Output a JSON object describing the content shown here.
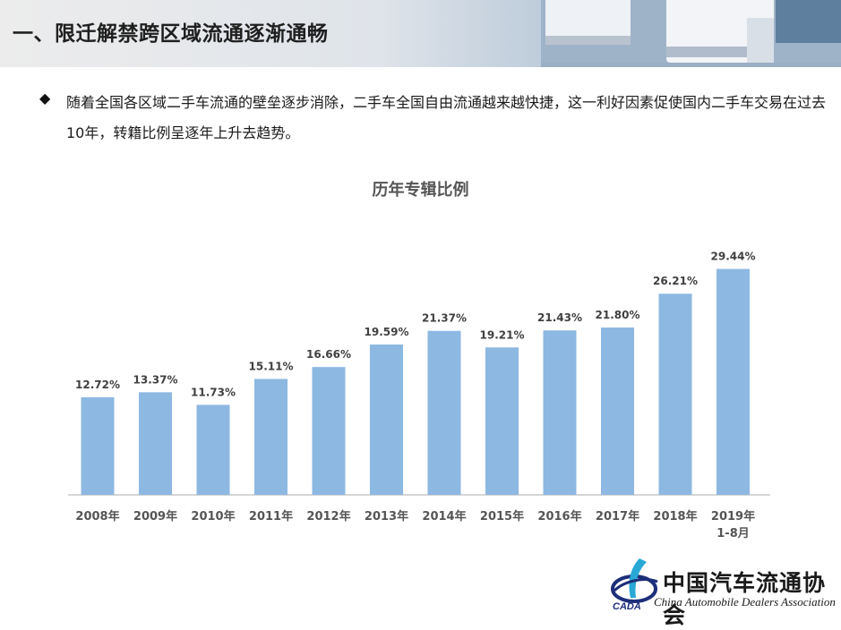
{
  "header": {
    "title": "一、限迁解禁跨区域流通逐渐通畅"
  },
  "bullet": {
    "icon": "diamond-bullet-icon",
    "text": "随着全国各区域二手车流通的壁垒逐步消除，二手车全国自由流通越来越快捷，这一利好因素促使国内二手车交易在过去10年，转籍比例呈逐年上升去趋势。"
  },
  "chart_data": {
    "type": "bar",
    "title": "历年专辑比例",
    "categories": [
      "2008年",
      "2009年",
      "2010年",
      "2011年",
      "2012年",
      "2013年",
      "2014年",
      "2015年",
      "2016年",
      "2017年",
      "2018年",
      "2019年\n1-8月"
    ],
    "values": [
      12.72,
      13.37,
      11.73,
      15.11,
      16.66,
      19.59,
      21.37,
      19.21,
      21.43,
      21.8,
      26.21,
      29.44
    ],
    "value_labels": [
      "12.72%",
      "13.37%",
      "11.73%",
      "15.11%",
      "16.66%",
      "19.59%",
      "21.37%",
      "19.21%",
      "21.43%",
      "21.80%",
      "26.21%",
      "29.44%"
    ],
    "unit": "%",
    "ylim": [
      0,
      33
    ],
    "grid": false,
    "bar_color": "#8db8e2"
  },
  "logo": {
    "mark": "CADA",
    "name_cn": "中国汽车流通协会",
    "name_en": "China Automobile Dealers Association"
  },
  "colors": {
    "accent_navy": "#1d2f7a",
    "accent_cyan": "#29a8d6"
  }
}
